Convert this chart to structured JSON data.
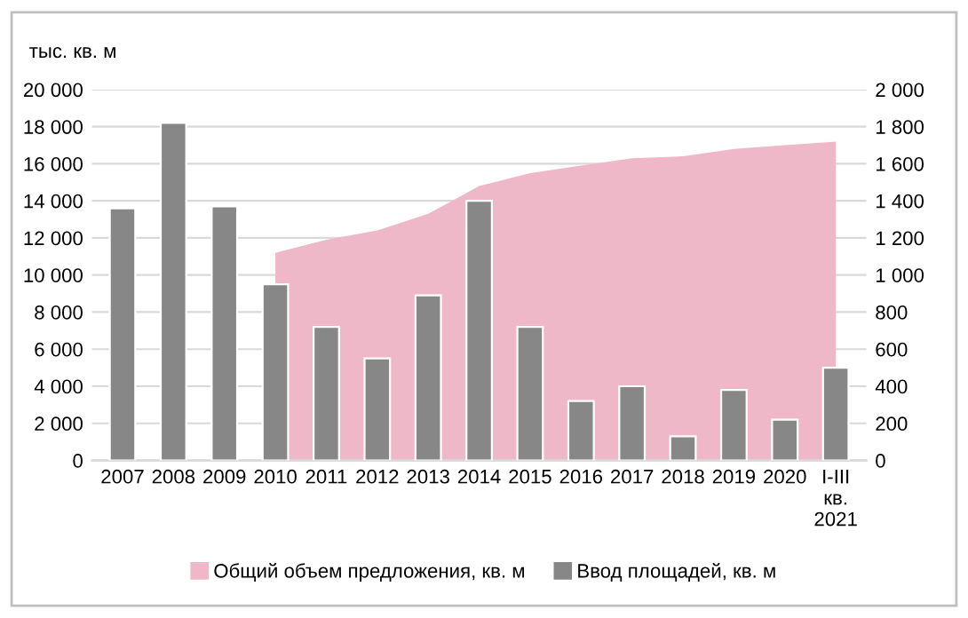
{
  "chart_data": {
    "type": "bar",
    "ylabel": "тыс. кв. м",
    "categories": [
      "2007",
      "2008",
      "2009",
      "2010",
      "2011",
      "2012",
      "2013",
      "2014",
      "2015",
      "2016",
      "2017",
      "2018",
      "2019",
      "2020",
      "I-III\nкв.\n2021"
    ],
    "series": [
      {
        "name": "Общий объем предложения, кв. м",
        "type": "area",
        "color": "#efb8c8",
        "values": [
          null,
          null,
          null,
          11200,
          11900,
          12400,
          13300,
          14800,
          15500,
          15900,
          16300,
          16400,
          16800,
          17000,
          17200
        ]
      },
      {
        "name": "Ввод площадей, кв. м",
        "axis": "y2",
        "color": "#878787",
        "values": [
          1360,
          1820,
          1370,
          950,
          720,
          550,
          890,
          1400,
          720,
          320,
          400,
          130,
          380,
          220,
          500
        ]
      }
    ],
    "ylim": [
      0,
      20000
    ],
    "yticks": [
      {
        "value": 0,
        "label": "0"
      },
      {
        "value": 2000,
        "label": "2 000"
      },
      {
        "value": 4000,
        "label": "4 000"
      },
      {
        "value": 6000,
        "label": "6 000"
      },
      {
        "value": 8000,
        "label": "8 000"
      },
      {
        "value": 10000,
        "label": "10 000"
      },
      {
        "value": 12000,
        "label": "12 000"
      },
      {
        "value": 14000,
        "label": "14 000"
      },
      {
        "value": 16000,
        "label": "16 000"
      },
      {
        "value": 18000,
        "label": "18 000"
      },
      {
        "value": 20000,
        "label": "20 000"
      }
    ],
    "y2lim": [
      0,
      2000
    ],
    "y2ticks": [
      0,
      200,
      400,
      600,
      800,
      {
        "value": 1000,
        "label": "1 000"
      },
      {
        "value": 1200,
        "label": "1 200"
      },
      {
        "value": 1400,
        "label": "1 400"
      },
      {
        "value": 1600,
        "label": "1 600"
      },
      {
        "value": 1800,
        "label": "1 800"
      },
      {
        "value": 2000,
        "label": "2 000"
      }
    ],
    "grid": "y",
    "legend": "bottom"
  }
}
